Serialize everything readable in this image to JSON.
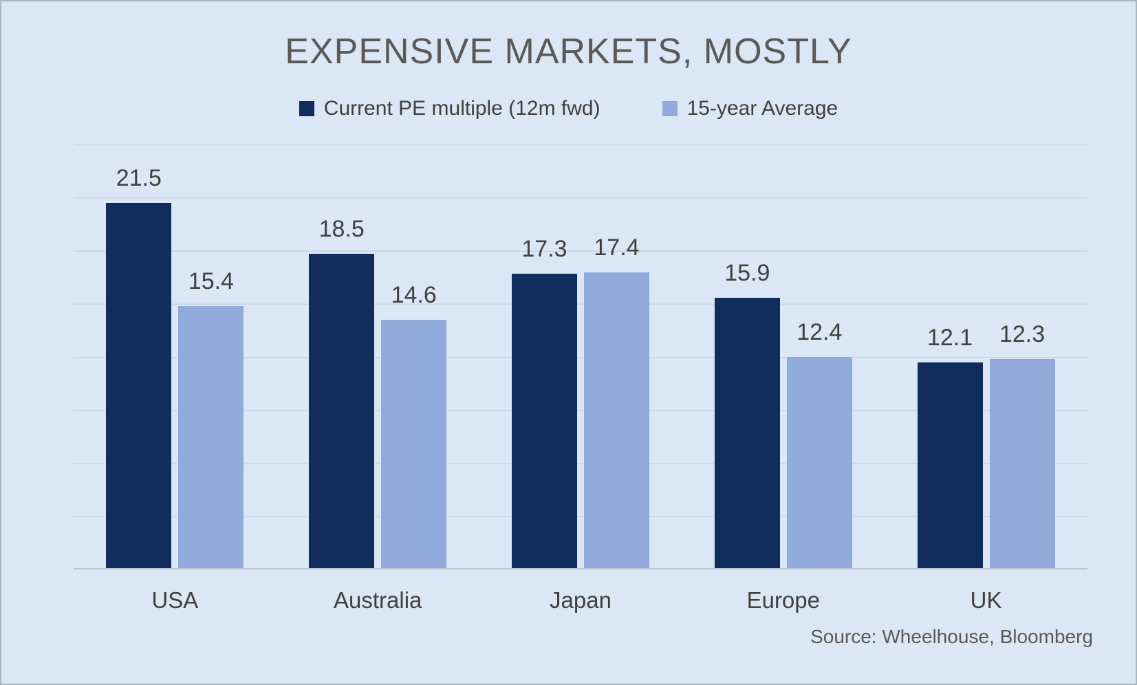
{
  "chart_data": {
    "type": "bar",
    "title": "EXPENSIVE MARKETS, MOSTLY",
    "categories": [
      "USA",
      "Australia",
      "Japan",
      "Europe",
      "UK"
    ],
    "series": [
      {
        "name": "Current PE multiple (12m fwd)",
        "color": "#102d5e",
        "values": [
          21.5,
          18.5,
          17.3,
          15.9,
          12.1
        ]
      },
      {
        "name": "15-year Average",
        "color": "#8faadb",
        "values": [
          15.4,
          14.6,
          17.4,
          12.4,
          12.3
        ]
      }
    ],
    "xlabel": "",
    "ylabel": "",
    "ylim": [
      0,
      25
    ],
    "grid": true,
    "legend_position": "top",
    "source": "Source: Wheelhouse, Bloomberg"
  },
  "colors": {
    "background": "#dbe7f4",
    "series_current": "#102d5e",
    "series_average": "#8faadb",
    "title_text": "#595959",
    "label_text": "#404040",
    "gridline": "#c9d6e6",
    "axis_line": "#b9c3ce"
  }
}
